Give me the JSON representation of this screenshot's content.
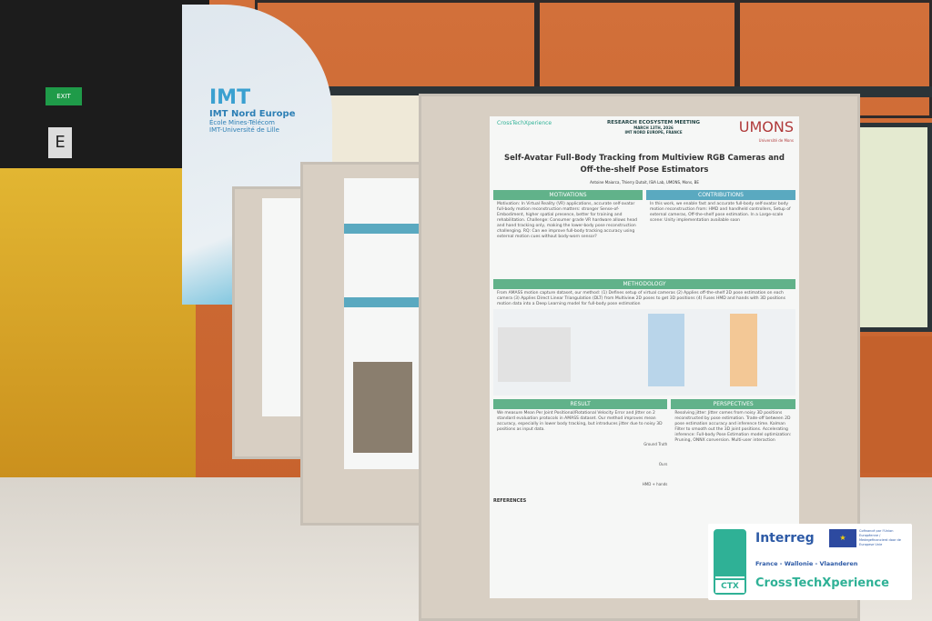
{
  "signage": {
    "exit_sign": "EXIT",
    "door_letter": "E"
  },
  "banner": {
    "org": "IMT Nord Europe",
    "line2": "École Mines-Télécom",
    "line3": "IMT-Université de Lille"
  },
  "poster": {
    "event": "RESEARCH ECOSYSTEM MEETING",
    "date": "MARCH 13TH, 2026",
    "venue": "IMT NORD EUROPE, FRANCE",
    "university": "UMONS",
    "university_sub": "Université de Mons",
    "title_line1": "Self-Avatar Full-Body Tracking from Multiview RGB Cameras and",
    "title_line2": "Off-the-shelf Pose Estimators",
    "authors": "Antoine Maiorca, Thierry Dutoit, ISIA Lab, UMONS, Mons, BE",
    "sections": {
      "motivations": "MOTIVATIONS",
      "contributions": "CONTRIBUTIONS",
      "methodology": "METHODOLOGY",
      "result": "RESULT",
      "perspectives": "PERSPECTIVES",
      "references": "REFERENCES"
    },
    "motivations_text": "Motivation: In Virtual Reality (VR) applications, accurate self-avatar full-body motion reconstruction matters: stronger Sense-of-Embodiment, higher spatial presence, better for training and rehabilitation. Challenge: Consumer grade VR hardware allows head and hand tracking only, making the lower-body pose reconstruction challenging. RQ: Can we improve full-body tracking accuracy using external motion cues without body-worn sensor?",
    "contributions_text": "In this work, we enable fast and accurate full-body self-avatar body motion reconstruction from: HMD and handheld controllers, Setup of external cameras, Off-the-shelf pose estimation. In a Large-scale scene: Unity implementation available soon",
    "methodology_text": "From AMASS motion capture dataset, our method: (1) Defines setup of virtual cameras (2) Applies off-the-shelf 2D pose estimation on each camera (3) Applies Direct Linear Triangulation (DLT) from Multiview 2D poses to get 3D positions (4) Fuses HMD and hands with 3D positions motion data into a Deep Learning model for full-body pose estimation",
    "result_text": "We measure Mean Per Joint Positional/Rotational Velocity Error and Jitter on 2 standard evaluation protocols in AMASS dataset. Our method improves mean accuracy, especially in lower body tracking, but introduces jitter due to noisy 3D positions as input data.",
    "result_rows": [
      "Ground Truth",
      "Ours",
      "HMD + hands"
    ],
    "perspectives_text": "Resolving jitter: Jitter comes from noisy 3D positions reconstructed by pose estimation. Trade-off between 2D pose estimation accuracy and inference time. Kalman Filter to smooth out the 3D joint positions. Accelerating inference: Full-body Pose Estimation model optimization: Pruning, ONNX conversion. Multi-user interaction"
  },
  "sponsor": {
    "interreg": "Interreg",
    "region": "France - Wallonie - Vlaanderen",
    "project": "CrossTechXperience",
    "ctx": "CTX",
    "eu_text": "Cofinancé par l'Union Européenne / Medegefinancierd door de Europese Unie",
    "colors": {
      "teal": "#2fb196",
      "blue": "#2d5aa6"
    }
  }
}
